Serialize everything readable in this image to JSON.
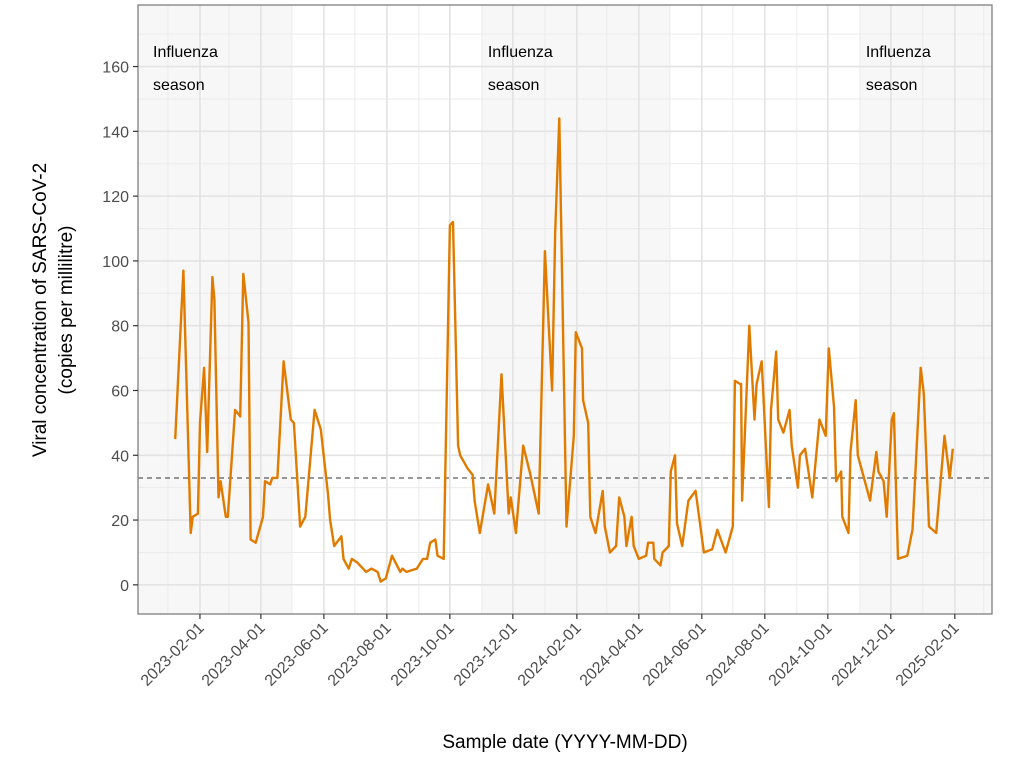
{
  "chart_data": {
    "type": "line",
    "title": "",
    "xlabel": "Sample date (YYYY-MM-DD)",
    "ylabel": [
      "Viral concentration of SARS-CoV-2",
      "(copies per millilitre)"
    ],
    "xlim": [
      "2022-12-03",
      "2025-03-09"
    ],
    "ylim": [
      -9,
      179
    ],
    "grid": true,
    "y_ticks": [
      0,
      20,
      40,
      60,
      80,
      100,
      120,
      140,
      160
    ],
    "x_ticks": [
      "2023-02-01",
      "2023-04-01",
      "2023-06-01",
      "2023-08-01",
      "2023-10-01",
      "2023-12-01",
      "2024-02-01",
      "2024-04-01",
      "2024-06-01",
      "2024-08-01",
      "2024-10-01",
      "2024-12-01",
      "2025-02-01"
    ],
    "line_color": "#E07B00",
    "reference_line": {
      "value": 33,
      "style": "dashed",
      "color": "#333333"
    },
    "shaded_periods": [
      {
        "start": "2022-11-01",
        "end": "2023-05-01",
        "label": [
          "Influenza",
          "season"
        ]
      },
      {
        "start": "2023-11-01",
        "end": "2024-05-01",
        "label": [
          "Influenza",
          "season"
        ]
      },
      {
        "start": "2024-11-01",
        "end": "2025-05-01",
        "label": [
          "Influenza",
          "season"
        ]
      }
    ],
    "shade_color": "#f7f7f7",
    "series": [
      {
        "x": [
          "2023-01-08",
          "2023-01-16",
          "2023-01-23",
          "2023-01-25",
          "2023-01-30",
          "2023-02-01",
          "2023-02-05",
          "2023-02-08",
          "2023-02-13",
          "2023-02-15",
          "2023-02-19",
          "2023-02-21",
          "2023-02-26",
          "2023-02-28",
          "2023-03-07",
          "2023-03-12",
          "2023-03-15",
          "2023-03-20",
          "2023-03-22",
          "2023-03-27",
          "2023-04-03",
          "2023-04-05",
          "2023-04-10",
          "2023-04-12",
          "2023-04-17",
          "2023-04-23",
          "2023-04-30",
          "2023-05-03",
          "2023-05-09",
          "2023-05-14",
          "2023-05-23",
          "2023-05-29",
          "2023-06-05",
          "2023-06-07",
          "2023-06-11",
          "2023-06-18",
          "2023-06-20",
          "2023-06-25",
          "2023-06-28",
          "2023-07-03",
          "2023-07-12",
          "2023-07-17",
          "2023-07-23",
          "2023-07-26",
          "2023-07-31",
          "2023-08-06",
          "2023-08-14",
          "2023-08-16",
          "2023-08-20",
          "2023-08-30",
          "2023-09-05",
          "2023-09-09",
          "2023-09-12",
          "2023-09-17",
          "2023-09-19",
          "2023-09-25",
          "2023-10-01",
          "2023-10-04",
          "2023-10-09",
          "2023-10-11",
          "2023-10-18",
          "2023-10-23",
          "2023-10-25",
          "2023-10-30",
          "2023-11-07",
          "2023-11-13",
          "2023-11-20",
          "2023-11-27",
          "2023-11-29",
          "2023-12-04",
          "2023-12-11",
          "2023-12-18",
          "2023-12-26",
          "2024-01-01",
          "2024-01-08",
          "2024-01-11",
          "2024-01-15",
          "2024-01-22",
          "2024-01-29",
          "2024-01-31",
          "2024-02-06",
          "2024-02-07",
          "2024-02-12",
          "2024-02-14",
          "2024-02-19",
          "2024-02-26",
          "2024-02-28",
          "2024-03-04",
          "2024-03-10",
          "2024-03-13",
          "2024-03-18",
          "2024-03-20",
          "2024-03-25",
          "2024-03-27",
          "2024-04-01",
          "2024-04-08",
          "2024-04-10",
          "2024-04-15",
          "2024-04-16",
          "2024-04-22",
          "2024-04-24",
          "2024-04-30",
          "2024-05-02",
          "2024-05-06",
          "2024-05-08",
          "2024-05-13",
          "2024-05-19",
          "2024-05-26",
          "2024-06-03",
          "2024-06-11",
          "2024-06-16",
          "2024-06-24",
          "2024-07-01",
          "2024-07-03",
          "2024-07-08",
          "2024-07-09",
          "2024-07-10",
          "2024-07-17",
          "2024-07-22",
          "2024-07-24",
          "2024-07-29",
          "2024-08-05",
          "2024-08-07",
          "2024-08-12",
          "2024-08-14",
          "2024-08-19",
          "2024-08-25",
          "2024-08-27",
          "2024-09-02",
          "2024-09-04",
          "2024-09-09",
          "2024-09-16",
          "2024-09-23",
          "2024-09-29",
          "2024-10-02",
          "2024-10-07",
          "2024-10-09",
          "2024-10-14",
          "2024-10-15",
          "2024-10-21",
          "2024-10-23",
          "2024-10-28",
          "2024-10-30",
          "2024-11-11",
          "2024-11-17",
          "2024-11-19",
          "2024-11-24",
          "2024-11-27",
          "2024-12-02",
          "2024-12-04",
          "2024-12-08",
          "2024-12-17",
          "2024-12-22",
          "2024-12-30",
          "2025-01-02",
          "2025-01-07",
          "2025-01-14",
          "2025-01-22",
          "2025-01-27",
          "2025-01-30"
        ],
        "y": [
          45,
          97,
          16,
          21,
          22,
          50,
          67,
          41,
          95,
          88,
          27,
          32,
          21,
          21,
          54,
          52,
          96,
          81,
          14,
          13,
          21,
          32,
          31,
          33,
          33,
          69,
          51,
          50,
          18,
          21,
          54,
          48,
          28,
          20,
          12,
          15,
          8,
          5,
          8,
          7,
          4,
          5,
          4,
          1,
          2,
          9,
          4,
          5,
          4,
          5,
          8,
          8,
          13,
          14,
          9,
          8,
          111,
          112,
          43,
          40,
          36,
          34,
          26,
          16,
          31,
          22,
          65,
          22,
          27,
          16,
          43,
          34,
          22,
          103,
          60,
          109,
          144,
          18,
          46,
          78,
          73,
          57,
          50,
          21,
          16,
          29,
          18,
          10,
          12,
          27,
          21,
          12,
          21,
          12,
          8,
          9,
          13,
          13,
          8,
          6,
          10,
          12,
          35,
          40,
          19,
          12,
          26,
          29,
          10,
          11,
          17,
          10,
          18,
          63,
          62,
          62,
          26,
          80,
          51,
          62,
          69,
          24,
          54,
          72,
          51,
          47,
          54,
          43,
          30,
          40,
          42,
          27,
          51,
          46,
          73,
          55,
          32,
          35,
          21,
          16,
          41,
          57,
          40,
          26,
          41,
          35,
          32,
          21,
          51,
          53,
          8,
          9,
          17,
          67,
          59,
          18,
          16,
          46,
          33,
          42
        ]
      }
    ]
  }
}
